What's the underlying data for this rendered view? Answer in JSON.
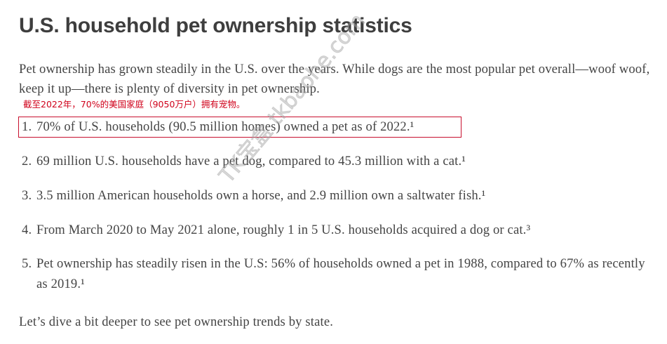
{
  "header": {
    "title": "U.S. household pet ownership statistics"
  },
  "intro": "Pet ownership has grown steadily in the U.S. over the years. While dogs are the most popular pet overall—woof woof, keep it up—there is plenty of diversity in pet ownership.",
  "annotation": "截至2022年，70%的美国家庭（9050万户）拥有宠物。",
  "list": [
    {
      "number": "1.",
      "text": "70% of U.S. households (90.5 million homes) owned a pet as of 2022.¹"
    },
    {
      "number": "2.",
      "text": "69 million U.S. households have a pet dog, compared to 45.3 million with a cat.¹"
    },
    {
      "number": "3.",
      "text": "3.5 million American households own a horse, and 2.9 million own a saltwater fish.¹"
    },
    {
      "number": "4.",
      "text": "From March 2020 to May 2021 alone, roughly 1 in 5 U.S. households acquired a dog or cat.³"
    },
    {
      "number": "5.",
      "text": "Pet ownership has steadily risen in the U.S: 56% of households owned a pet in 1988, compared to 67% as recently as 2019.¹"
    }
  ],
  "outro": "Let’s dive a bit deeper to see pet ownership trends by state.",
  "watermark": "TK宝盒 tkbaohe.com"
}
